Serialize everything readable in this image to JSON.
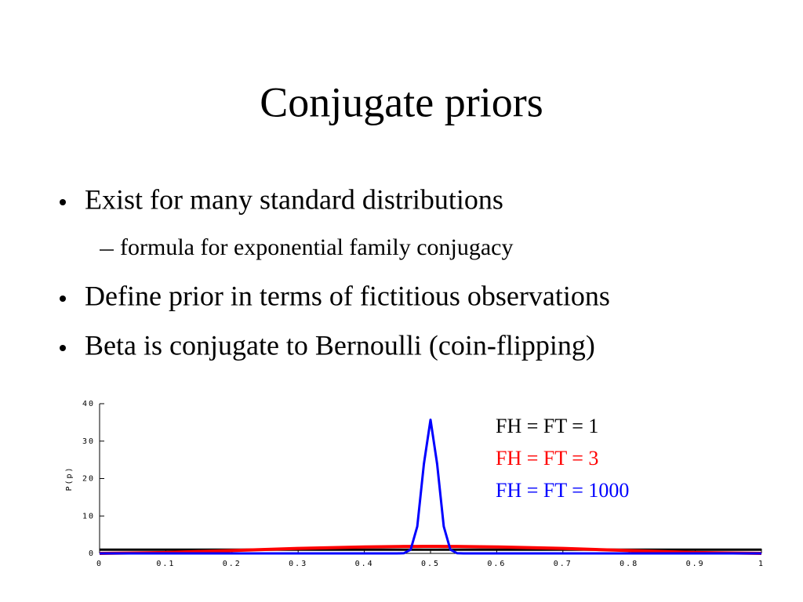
{
  "slide": {
    "title": "Conjugate priors",
    "bullets": [
      {
        "text": "Exist for many standard distributions",
        "level": 1
      },
      {
        "text": "formula for exponential family conjugacy",
        "level": 2
      },
      {
        "text": "Define prior in terms of fictitious observations",
        "level": 1
      },
      {
        "text": "Beta is conjugate to Bernoulli (coin-flipping)",
        "level": 1
      }
    ]
  },
  "chart_data": {
    "type": "line",
    "ylabel": "P(p)",
    "x": [
      0,
      0.1,
      0.2,
      0.3,
      0.4,
      0.45,
      0.46,
      0.47,
      0.48,
      0.49,
      0.5,
      0.51,
      0.52,
      0.53,
      0.54,
      0.55,
      0.6,
      0.7,
      0.8,
      0.9,
      1
    ],
    "series": [
      {
        "name": "FH = FT = 1",
        "color": "#000000",
        "values": [
          1,
          1,
          1,
          1,
          1,
          1,
          1,
          1,
          1,
          1,
          1,
          1,
          1,
          1,
          1,
          1,
          1,
          1,
          1,
          1,
          1
        ]
      },
      {
        "name": "FH = FT = 3",
        "color": "#ff0000",
        "values": [
          0,
          0.243,
          0.768,
          1.323,
          1.728,
          1.838,
          1.851,
          1.862,
          1.869,
          1.873,
          1.875,
          1.873,
          1.869,
          1.862,
          1.851,
          1.838,
          1.728,
          1.323,
          0.768,
          0.243,
          0
        ]
      },
      {
        "name": "FH = FT = 1000",
        "color": "#0000ff",
        "values": [
          0,
          0,
          0,
          0,
          0,
          0,
          0.06,
          1,
          7.2,
          23.9,
          35.7,
          23.9,
          7.2,
          1,
          0.06,
          0,
          0,
          0,
          0,
          0,
          0
        ]
      }
    ],
    "xlim": [
      0,
      1
    ],
    "xticks": [
      0,
      0.1,
      0.2,
      0.3,
      0.4,
      0.5,
      0.6,
      0.7,
      0.8,
      0.9,
      1
    ],
    "ylim": [
      0,
      40
    ],
    "yticks": [
      0,
      10,
      20,
      30,
      40
    ]
  }
}
